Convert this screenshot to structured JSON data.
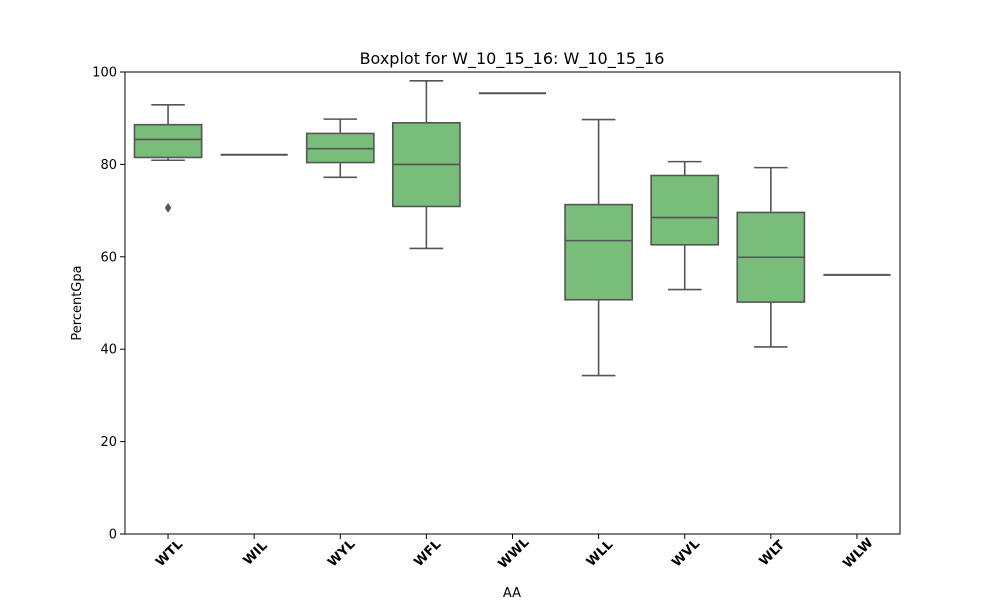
{
  "chart_data": {
    "type": "box",
    "title": "Boxplot for W_10_15_16: W_10_15_16",
    "xlabel": "AA",
    "ylabel": "PercentGpa",
    "ylim": [
      0,
      100
    ],
    "yticks": [
      0,
      20,
      40,
      60,
      80,
      100
    ],
    "categories": [
      "WTL",
      "WIL",
      "WYL",
      "WFL",
      "WWL",
      "WLL",
      "WVL",
      "WLT",
      "WLW"
    ],
    "boxes": [
      {
        "q1": 81.5,
        "median": 85.4,
        "q3": 88.6,
        "whisker_low": 80.9,
        "whisker_high": 92.9,
        "outliers": [
          70.6
        ]
      },
      {
        "q1": 82.1,
        "median": 82.1,
        "q3": 82.1,
        "whisker_low": 82.1,
        "whisker_high": 82.1,
        "outliers": []
      },
      {
        "q1": 80.4,
        "median": 83.4,
        "q3": 86.7,
        "whisker_low": 77.2,
        "whisker_high": 89.8,
        "outliers": []
      },
      {
        "q1": 70.9,
        "median": 80.0,
        "q3": 89.0,
        "whisker_low": 61.8,
        "whisker_high": 98.1,
        "outliers": []
      },
      {
        "q1": 95.4,
        "median": 95.4,
        "q3": 95.4,
        "whisker_low": 95.4,
        "whisker_high": 95.4,
        "outliers": []
      },
      {
        "q1": 50.7,
        "median": 63.5,
        "q3": 71.3,
        "whisker_low": 34.3,
        "whisker_high": 89.7,
        "outliers": []
      },
      {
        "q1": 62.6,
        "median": 68.5,
        "q3": 77.6,
        "whisker_low": 52.9,
        "whisker_high": 80.6,
        "outliers": []
      },
      {
        "q1": 50.2,
        "median": 59.9,
        "q3": 69.6,
        "whisker_low": 40.5,
        "whisker_high": 79.3,
        "outliers": []
      },
      {
        "q1": 56.1,
        "median": 56.1,
        "q3": 56.1,
        "whisker_low": 56.1,
        "whisker_high": 56.1,
        "outliers": []
      }
    ],
    "colors": {
      "box_fill": "#79bd7a",
      "box_edge": "#555555",
      "axis": "#000000"
    },
    "grid": false,
    "legend": "none"
  }
}
